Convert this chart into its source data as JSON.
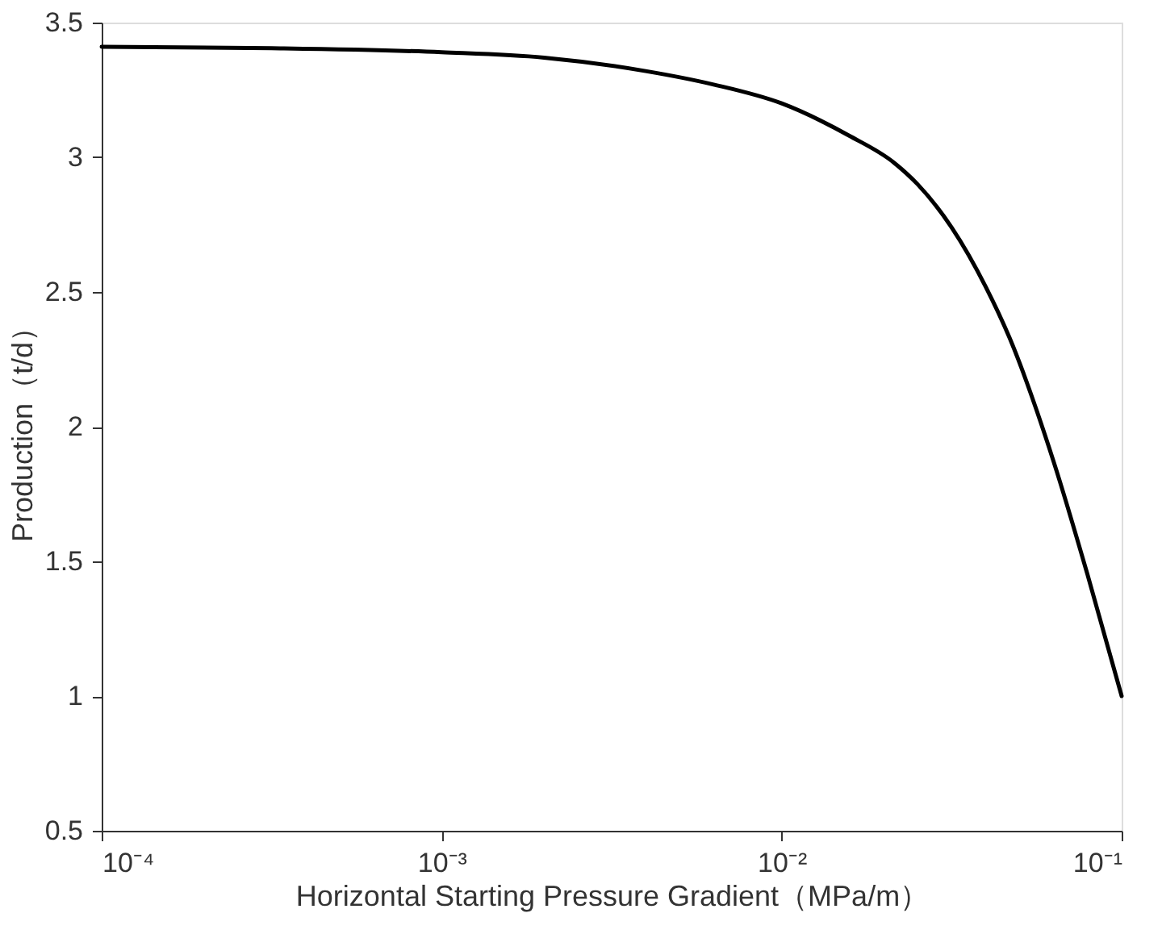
{
  "chart_data": {
    "type": "line",
    "xlabel": "Horizontal Starting Pressure Gradient（MPa/m）",
    "ylabel": "Production（t/d）",
    "x": [
      0.0001,
      0.000316,
      0.001,
      0.002,
      0.00398,
      0.00631,
      0.01,
      0.0158,
      0.0214,
      0.0251,
      0.0316,
      0.0398,
      0.0468,
      0.0631,
      0.0794,
      0.1
    ],
    "series": [
      {
        "color": "#000000",
        "values": [
          3.41,
          3.405,
          3.39,
          3.37,
          3.32,
          3.27,
          3.2,
          3.08,
          2.98,
          2.9,
          2.74,
          2.52,
          2.33,
          1.87,
          1.45,
          1.0
        ]
      }
    ],
    "log": "x",
    "xlim": [
      0.0001,
      0.1
    ],
    "ylim": [
      0.5,
      3.5
    ],
    "xticks": [
      {
        "value": 0.0001,
        "label": "10⁻⁴"
      },
      {
        "value": 0.001,
        "label": "10⁻³"
      },
      {
        "value": 0.01,
        "label": "10⁻²"
      },
      {
        "value": 0.1,
        "label": "10⁻¹"
      }
    ],
    "yticks": [
      0.5,
      1,
      1.5,
      2,
      2.5,
      3,
      3.5
    ],
    "grid": false,
    "line_style": "solid",
    "marker": "none"
  }
}
